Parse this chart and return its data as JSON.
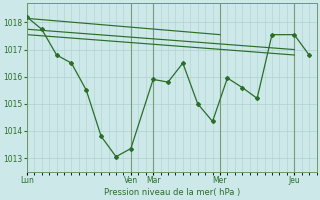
{
  "background_color": "#cce8e8",
  "grid_color": "#b0d0d0",
  "line_color": "#2a6e2a",
  "ylabel": "Pression niveau de la mer( hPa )",
  "ylim": [
    1012.5,
    1018.7
  ],
  "yticks": [
    1013,
    1014,
    1015,
    1016,
    1017,
    1018
  ],
  "x_day_labels": [
    "Lun",
    "Ven",
    "Mar",
    "Mer",
    "Jeu"
  ],
  "x_day_positions": [
    0,
    14,
    17,
    26,
    36
  ],
  "xlim": [
    0,
    39
  ],
  "trend1_x": [
    0,
    26
  ],
  "trend1_y": [
    1018.15,
    1017.55
  ],
  "trend2_x": [
    0,
    36
  ],
  "trend2_y": [
    1017.75,
    1017.0
  ],
  "trend3_x": [
    0,
    36
  ],
  "trend3_y": [
    1017.55,
    1016.8
  ],
  "main_x": [
    0,
    2,
    4,
    6,
    8,
    10,
    12,
    14,
    17,
    19,
    21,
    23,
    25,
    27,
    29,
    31,
    33,
    36,
    38
  ],
  "main_y": [
    1018.2,
    1017.75,
    1016.8,
    1016.5,
    1015.5,
    1013.8,
    1013.05,
    1013.35,
    1015.9,
    1015.8,
    1016.5,
    1015.0,
    1014.35,
    1015.95,
    1015.6,
    1015.2,
    1017.55,
    1017.55,
    1016.8
  ]
}
